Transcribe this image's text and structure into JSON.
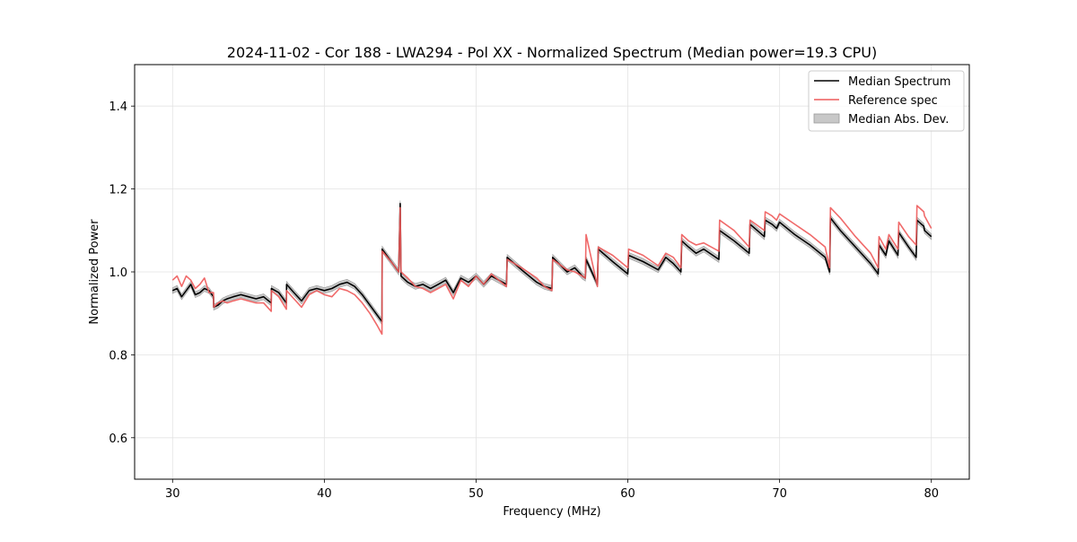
{
  "chart_data": {
    "type": "line",
    "title": "2024-11-02 - Cor 188 - LWA294 - Pol XX - Normalized Spectrum (Median power=19.3 CPU)",
    "xlabel": "Frequency (MHz)",
    "ylabel": "Normalized Power",
    "xlim": [
      27.5,
      82.5
    ],
    "ylim": [
      0.5,
      1.5
    ],
    "xticks": [
      30,
      40,
      50,
      60,
      70,
      80
    ],
    "yticks": [
      0.6,
      0.8,
      1.0,
      1.2,
      1.4
    ],
    "xtick_labels": [
      "30",
      "40",
      "50",
      "60",
      "70",
      "80"
    ],
    "ytick_labels": [
      "0.6",
      "0.8",
      "1.0",
      "1.2",
      "1.4"
    ],
    "grid": true,
    "legend_position": "top-right",
    "colors": {
      "median": "#000000",
      "reference": "#ee5a5a",
      "mad_fill": "#c8c8c8",
      "mad_edge": "#999999"
    },
    "series": [
      {
        "name": "Median Spectrum",
        "x": [
          30.0,
          30.3,
          30.6,
          30.9,
          31.2,
          31.5,
          31.8,
          32.1,
          32.4,
          32.7,
          32.71,
          33.0,
          33.3,
          33.6,
          34.0,
          34.5,
          35.0,
          35.5,
          36.0,
          36.5,
          36.51,
          37.0,
          37.5,
          37.51,
          38.0,
          38.5,
          39.0,
          39.5,
          40.0,
          40.5,
          41.0,
          41.5,
          42.0,
          42.5,
          43.0,
          43.5,
          43.8,
          43.81,
          44.5,
          44.9,
          45.0,
          45.05,
          45.5,
          46.0,
          46.5,
          47.0,
          47.5,
          48.0,
          48.5,
          49.0,
          49.5,
          50.0,
          50.5,
          51.0,
          51.5,
          52.0,
          52.05,
          53.0,
          54.0,
          54.5,
          55.0,
          55.05,
          56.0,
          56.5,
          57.0,
          57.2,
          57.25,
          58.0,
          58.05,
          59.0,
          60.0,
          60.05,
          61.0,
          62.0,
          62.5,
          63.0,
          63.5,
          63.55,
          64.0,
          64.5,
          65.0,
          66.0,
          66.05,
          67.0,
          68.0,
          68.05,
          69.0,
          69.05,
          69.5,
          69.8,
          70.0,
          71.0,
          72.0,
          73.0,
          73.3,
          73.35,
          74.0,
          75.0,
          76.0,
          76.5,
          76.55,
          77.0,
          77.2,
          77.8,
          77.85,
          78.5,
          79.0,
          79.05,
          79.5,
          79.55,
          80.0
        ],
        "values": [
          0.955,
          0.96,
          0.94,
          0.955,
          0.97,
          0.945,
          0.95,
          0.96,
          0.955,
          0.94,
          0.915,
          0.92,
          0.93,
          0.935,
          0.94,
          0.945,
          0.94,
          0.935,
          0.94,
          0.925,
          0.96,
          0.95,
          0.925,
          0.97,
          0.95,
          0.93,
          0.955,
          0.96,
          0.955,
          0.96,
          0.97,
          0.975,
          0.965,
          0.945,
          0.92,
          0.895,
          0.88,
          1.055,
          1.02,
          1.0,
          1.165,
          0.99,
          0.975,
          0.965,
          0.97,
          0.96,
          0.97,
          0.98,
          0.95,
          0.985,
          0.975,
          0.99,
          0.97,
          0.99,
          0.98,
          0.97,
          1.035,
          1.005,
          0.975,
          0.965,
          0.96,
          1.035,
          1.0,
          1.01,
          0.99,
          0.985,
          1.03,
          0.97,
          1.055,
          1.025,
          0.995,
          1.04,
          1.025,
          1.005,
          1.035,
          1.02,
          1.0,
          1.075,
          1.06,
          1.045,
          1.055,
          1.03,
          1.1,
          1.075,
          1.045,
          1.115,
          1.085,
          1.125,
          1.115,
          1.105,
          1.12,
          1.09,
          1.065,
          1.035,
          1.0,
          1.13,
          1.1,
          1.06,
          1.02,
          0.995,
          1.065,
          1.04,
          1.075,
          1.04,
          1.095,
          1.06,
          1.035,
          1.125,
          1.11,
          1.1,
          1.085
        ]
      },
      {
        "name": "Reference spec",
        "x": [
          30.0,
          30.3,
          30.6,
          30.9,
          31.2,
          31.5,
          31.8,
          32.1,
          32.4,
          32.7,
          32.71,
          33.0,
          33.3,
          33.6,
          34.0,
          34.5,
          35.0,
          35.5,
          36.0,
          36.5,
          36.51,
          37.0,
          37.5,
          37.51,
          38.0,
          38.5,
          39.0,
          39.5,
          40.0,
          40.5,
          41.0,
          41.5,
          42.0,
          42.5,
          43.0,
          43.5,
          43.8,
          43.81,
          44.5,
          44.9,
          45.0,
          45.05,
          45.5,
          46.0,
          46.5,
          47.0,
          47.5,
          48.0,
          48.5,
          49.0,
          49.5,
          50.0,
          50.5,
          51.0,
          51.5,
          52.0,
          52.05,
          53.0,
          54.0,
          54.5,
          55.0,
          55.05,
          56.0,
          56.5,
          57.0,
          57.2,
          57.25,
          58.0,
          58.05,
          59.0,
          60.0,
          60.05,
          61.0,
          62.0,
          62.5,
          63.0,
          63.5,
          63.55,
          64.0,
          64.5,
          65.0,
          66.0,
          66.05,
          67.0,
          68.0,
          68.05,
          69.0,
          69.05,
          69.5,
          69.8,
          70.0,
          71.0,
          72.0,
          73.0,
          73.3,
          73.35,
          74.0,
          75.0,
          76.0,
          76.5,
          76.55,
          77.0,
          77.2,
          77.8,
          77.85,
          78.5,
          79.0,
          79.05,
          79.5,
          79.55,
          80.0
        ],
        "values": [
          0.98,
          0.99,
          0.965,
          0.99,
          0.98,
          0.96,
          0.97,
          0.985,
          0.95,
          0.95,
          0.915,
          0.925,
          0.93,
          0.925,
          0.93,
          0.935,
          0.93,
          0.925,
          0.925,
          0.905,
          0.955,
          0.94,
          0.91,
          0.955,
          0.935,
          0.915,
          0.945,
          0.955,
          0.945,
          0.94,
          0.96,
          0.955,
          0.945,
          0.925,
          0.9,
          0.87,
          0.85,
          1.05,
          1.02,
          1.0,
          1.155,
          1.0,
          0.985,
          0.965,
          0.96,
          0.95,
          0.96,
          0.97,
          0.935,
          0.98,
          0.965,
          0.99,
          0.97,
          0.995,
          0.98,
          0.965,
          1.03,
          1.01,
          0.985,
          0.965,
          0.955,
          1.03,
          1.005,
          1.0,
          0.99,
          0.985,
          1.09,
          0.965,
          1.06,
          1.04,
          1.01,
          1.055,
          1.04,
          1.015,
          1.045,
          1.035,
          1.01,
          1.09,
          1.075,
          1.065,
          1.07,
          1.05,
          1.125,
          1.1,
          1.06,
          1.125,
          1.1,
          1.145,
          1.135,
          1.125,
          1.14,
          1.115,
          1.09,
          1.06,
          1.01,
          1.155,
          1.13,
          1.085,
          1.045,
          1.01,
          1.085,
          1.055,
          1.09,
          1.055,
          1.12,
          1.085,
          1.065,
          1.16,
          1.145,
          1.135,
          1.105
        ]
      }
    ],
    "mad_band_halfwidth": 0.007
  },
  "legend": {
    "items": [
      {
        "label": "Median Spectrum"
      },
      {
        "label": "Reference spec"
      },
      {
        "label": "Median Abs. Dev."
      }
    ]
  }
}
